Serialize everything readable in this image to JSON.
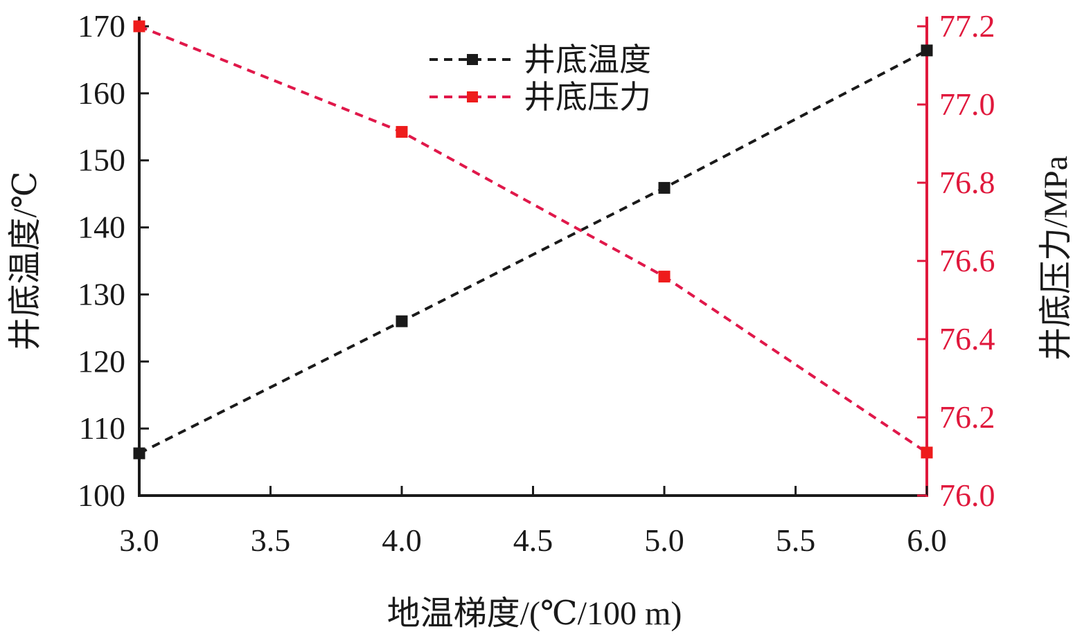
{
  "chart_data": {
    "type": "line",
    "x": [
      3.0,
      4.0,
      5.0,
      6.0
    ],
    "xlabel": "地温梯度/(℃/100 m)",
    "xlim": [
      3.0,
      6.0
    ],
    "xticks": [
      "3.0",
      "3.5",
      "4.0",
      "4.5",
      "5.0",
      "5.5",
      "6.0"
    ],
    "xtick_values": [
      3.0,
      3.5,
      4.0,
      4.5,
      5.0,
      5.5,
      6.0
    ],
    "y_left": {
      "label": "井底温度/℃",
      "lim": [
        100,
        170
      ],
      "ticks": [
        "100",
        "110",
        "120",
        "130",
        "140",
        "150",
        "160",
        "170"
      ],
      "tick_values": [
        100,
        110,
        120,
        130,
        140,
        150,
        160,
        170
      ],
      "color": "#1a1a1a"
    },
    "y_right": {
      "label": "井底压力/MPa",
      "lim": [
        76.0,
        77.2
      ],
      "ticks": [
        "76.0",
        "76.2",
        "76.4",
        "76.6",
        "76.8",
        "77.0",
        "77.2"
      ],
      "tick_values": [
        76.0,
        76.2,
        76.4,
        76.6,
        76.8,
        77.0,
        77.2
      ],
      "color": "#e0183c"
    },
    "series": [
      {
        "name": "井底温度",
        "axis": "left",
        "values": [
          106.3,
          126.0,
          145.9,
          166.4
        ],
        "color": "#1a1a1a",
        "marker_color": "#1a1a1a",
        "style": "dashed",
        "marker": "square"
      },
      {
        "name": "井底压力",
        "axis": "right",
        "values": [
          77.2,
          76.93,
          76.56,
          76.11
        ],
        "color": "#e0184a",
        "marker_color": "#ee1c1c",
        "style": "dashed",
        "marker": "square"
      }
    ],
    "legend_position": "top-center",
    "grid": false
  }
}
